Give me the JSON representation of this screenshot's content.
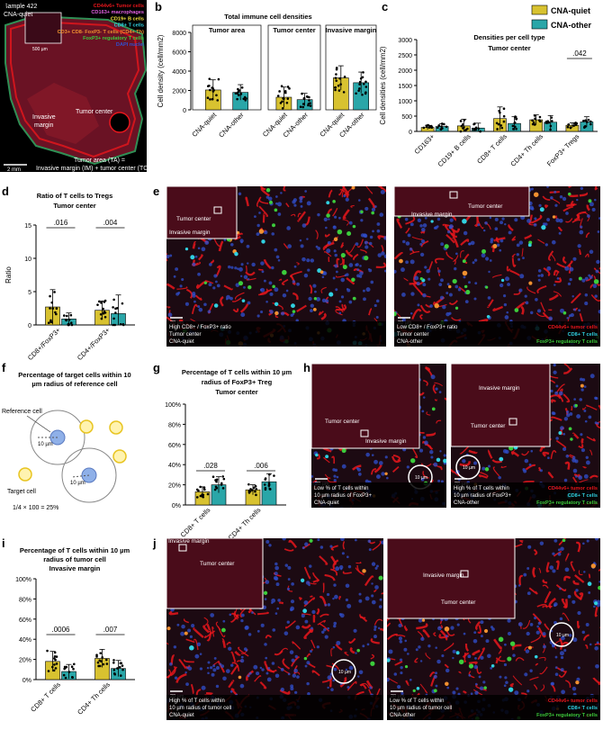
{
  "colors": {
    "quiet": "#d8c230",
    "other": "#2aa6a8",
    "tumor": "#e8161c",
    "cd8": "#30d0e0",
    "treg": "#3ccc3c",
    "cd163": "#e060e0",
    "cd19": "#f0e040",
    "nuclei": "#3050d0",
    "cd4th": "#f09030",
    "tissue": "#6a1224"
  },
  "panel_letters": {
    "a": "a",
    "b": "b",
    "c": "c",
    "d": "d",
    "e": "e",
    "f": "f",
    "g": "g",
    "h": "h",
    "i": "i",
    "j": "j"
  },
  "legend": {
    "quiet": "CNA-quiet",
    "other": "CNA-other"
  },
  "panel_a": {
    "sample": "Sample 422",
    "subtype": "CNA-quiet",
    "legend_items": [
      {
        "text": "CD44v6+ Tumor cells",
        "color": "#e8161c"
      },
      {
        "text": "CD163+ macrophages",
        "color": "#e060e0"
      },
      {
        "text": "CD19+ B cells",
        "color": "#f0e040"
      },
      {
        "text": "CD8+ T cells",
        "color": "#30d0e0"
      },
      {
        "text": "CD3+ CD8- FoxP3- T cells (CD4+ Th)",
        "color": "#f09030"
      },
      {
        "text": "FoxP3+ regulatory T cells",
        "color": "#3ccc3c"
      },
      {
        "text": "DAPI nuclei",
        "color": "#3050d0"
      }
    ],
    "scale_inset": "500 µm",
    "tumor_center": "Tumor center",
    "invasive_margin": "Invasive\nmargin",
    "scale": "2 mm",
    "tumor_area_1": "Tumor area (TA) =",
    "tumor_area_2": "Invasive margin (IM) + tumor center (TC)"
  },
  "panel_f": {
    "title_1": "Percentage of target cells within 10",
    "title_2": "µm radius of reference cell",
    "reference": "Reference cell",
    "target": "Target cell",
    "r1": "10 µm",
    "r2": "10 µm",
    "formula": "1/4 × 100 = 25%"
  },
  "micro": {
    "e_left": {
      "inset_1": "Tumor center",
      "inset_2": "Invasive margin",
      "scale": "20 µm",
      "caption": [
        "High CD8+ / FoxP3+ ratio",
        "Tumor center",
        "CNA-quiet"
      ]
    },
    "e_right": {
      "inset_1": "Tumor center",
      "inset_2": "Invasive margin",
      "scale": "20 µm",
      "caption": [
        "Low CD8+ / FoxP3+ ratio",
        "Tumor center",
        "CNA-other"
      ],
      "legend": [
        "CD44v6+ tumor cells",
        "CD8+ T cells",
        "FoxP3+ regulatory T cells"
      ]
    },
    "h_left": {
      "inset_1": "Tumor center",
      "inset_2": "Invasive margin",
      "scale": "20 µm",
      "circle": "10 µm",
      "caption": [
        "Low % of T cells within",
        "10 µm radius of FoxP3+",
        "CNA-quiet"
      ]
    },
    "h_right": {
      "inset_1": "Invasive margin",
      "inset_2": "Tumor center",
      "scale": "20 µm",
      "circle": "10 µm",
      "caption": [
        "High % of T cells within",
        "10 µm radius of FoxP3+",
        "CNA-other"
      ],
      "legend": [
        "CD44v6+ tumor cells",
        "CD8+ T cells",
        "FoxP3+ regulatory T cells",
        "CD3+ CD8- FoxP3- T cell (CD4+Th)"
      ]
    },
    "j_left": {
      "inset_1": "Invasive margin",
      "inset_2": "Tumor center",
      "scale": "20 µm",
      "circle": "10 µm",
      "caption": [
        "High % of T cells within",
        "10 µm radius of tumor cell",
        "CNA-quiet"
      ]
    },
    "j_right": {
      "inset_1": "Invasive margin",
      "inset_2": "Tumor center",
      "scale": "20 µm",
      "circle": "10 µm",
      "caption": [
        "Low % of T cells within",
        "10 µm radius of tumor cell",
        "CNA-other"
      ],
      "legend": [
        "CD44v6+ tumor cells",
        "CD8+ T cells",
        "FoxP3+ regulatory T cells",
        "CD3+ CD8- FoxP3- T cell (CD4+Th)"
      ]
    }
  },
  "chart_data": [
    {
      "id": "b",
      "type": "bar",
      "title": "Total immune cell densities",
      "ylabel": "Cell density (cell/mm2)",
      "ylim": [
        0,
        8000
      ],
      "yticks": [
        0,
        2000,
        4000,
        6000,
        8000
      ],
      "subpanels": [
        "Tumor area",
        "Tumor center",
        "Invasive margin"
      ],
      "categories": [
        "CNA-quiet",
        "CNA-other"
      ],
      "series": [
        {
          "values": [
            2050,
            1800
          ],
          "errors": [
            1050,
            800
          ]
        },
        {
          "values": [
            1300,
            1050
          ],
          "errors": [
            1050,
            650
          ]
        },
        {
          "values": [
            3300,
            2800
          ],
          "errors": [
            1250,
            1100
          ]
        }
      ]
    },
    {
      "id": "c",
      "type": "bar",
      "title": "Densities per cell type",
      "subtitle": "Tumor center",
      "ylabel": "Cell densities (cell/mm2)",
      "ylim": [
        0,
        3000
      ],
      "yticks": [
        0,
        500,
        1000,
        1500,
        2000,
        2500,
        3000
      ],
      "categories": [
        "CD163+",
        "CD19+ B cells",
        "CD8+ T cells",
        "CD4+ Th cells",
        "FoxP3+ Tregs"
      ],
      "series": [
        {
          "name": "CNA-quiet",
          "values": [
            130,
            180,
            420,
            380,
            200
          ],
          "errors": [
            70,
            220,
            380,
            160,
            80
          ]
        },
        {
          "name": "CNA-other",
          "values": [
            160,
            110,
            260,
            300,
            310
          ],
          "errors": [
            90,
            160,
            220,
            220,
            170
          ]
        }
      ],
      "annotations": [
        {
          "category": "FoxP3+ Tregs",
          "text": ".042"
        }
      ]
    },
    {
      "id": "d",
      "type": "bar",
      "title": "Ratio of T cells to Tregs",
      "subtitle": "Tumor center",
      "ylabel": "Ratio",
      "ylim": [
        0,
        15
      ],
      "yticks": [
        0,
        5,
        10,
        15
      ],
      "categories": [
        "CD8+/FoxP3+",
        "CD4+/FoxP3+"
      ],
      "series": [
        {
          "name": "CNA-quiet",
          "values": [
            2.7,
            2.2
          ],
          "errors": [
            2.6,
            1.4
          ]
        },
        {
          "name": "CNA-other",
          "values": [
            0.9,
            1.7
          ],
          "errors": [
            0.9,
            2.8
          ]
        }
      ],
      "annotations": [
        {
          "category": "CD8+/FoxP3+",
          "text": ".016"
        },
        {
          "category": "CD4+/FoxP3+",
          "text": ".004"
        }
      ]
    },
    {
      "id": "g",
      "type": "bar",
      "title": "Percentage of T cells within 10 µm radius of FoxP3+ Treg",
      "subtitle": "Tumor center",
      "ylabel": "",
      "ylim": [
        0,
        100
      ],
      "yticks": [
        0,
        20,
        40,
        60,
        80,
        100
      ],
      "categories": [
        "CD8+ T cells",
        "CD4+ Th cells"
      ],
      "series": [
        {
          "name": "CNA-quiet",
          "values": [
            13,
            15
          ],
          "errors": [
            5,
            5
          ]
        },
        {
          "name": "CNA-other",
          "values": [
            20,
            23
          ],
          "errors": [
            8,
            8
          ]
        }
      ],
      "annotations": [
        {
          "category": "CD8+ T cells",
          "text": ".028"
        },
        {
          "category": "CD4+ Th cells",
          "text": ".006"
        }
      ]
    },
    {
      "id": "i",
      "type": "bar",
      "title": "Percentage of T cells within 10 µm radius of tumor cell",
      "subtitle": "Invasive margin",
      "ylabel": "",
      "ylim": [
        0,
        100
      ],
      "yticks": [
        0,
        20,
        40,
        60,
        80,
        100
      ],
      "categories": [
        "CD8+ T cells",
        "CD4+ Th cells"
      ],
      "series": [
        {
          "name": "CNA-quiet",
          "values": [
            18,
            21
          ],
          "errors": [
            10,
            9
          ]
        },
        {
          "name": "CNA-other",
          "values": [
            8,
            11
          ],
          "errors": [
            7,
            8
          ]
        }
      ],
      "annotations": [
        {
          "category": "CD8+ T cells",
          "text": ".0006"
        },
        {
          "category": "CD4+ Th cells",
          "text": ".007"
        }
      ]
    }
  ]
}
